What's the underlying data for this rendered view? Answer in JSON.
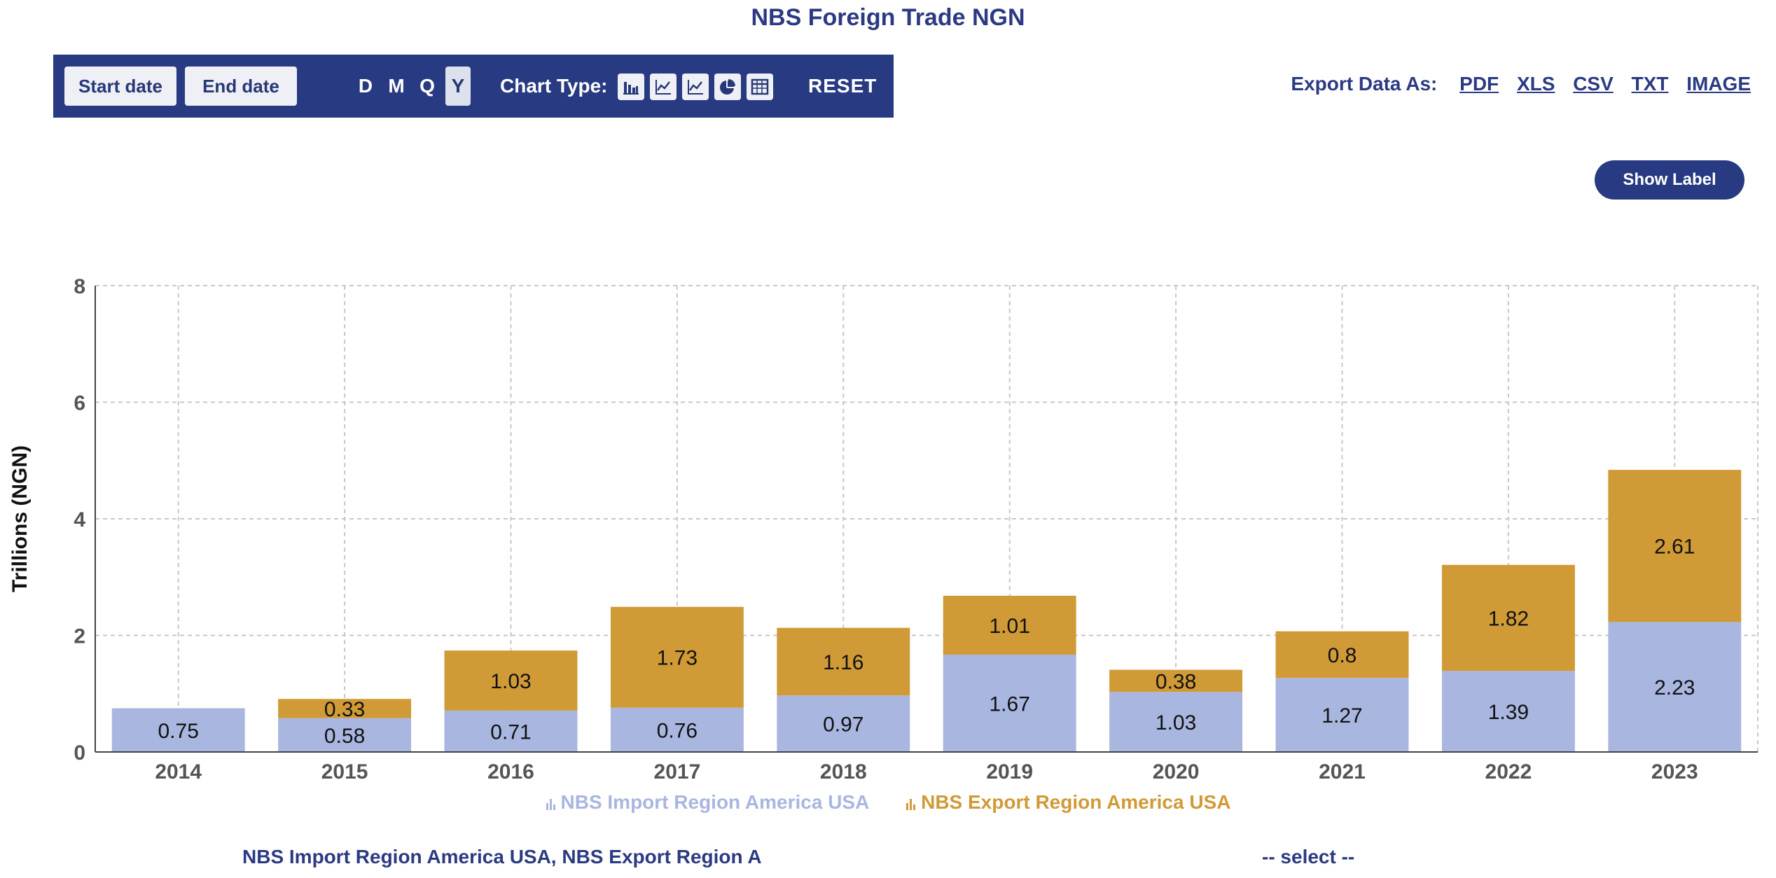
{
  "title": "NBS Foreign Trade NGN",
  "toolbar": {
    "start_date": "Start date",
    "end_date": "End date",
    "periods": [
      "D",
      "M",
      "Q",
      "Y"
    ],
    "active_period": "Y",
    "chart_type_label": "Chart Type:",
    "chart_type_icons": [
      "bar-chart-icon",
      "line-chart-icon",
      "area-chart-icon",
      "pie-chart-icon",
      "table-icon"
    ],
    "reset": "RESET"
  },
  "export": {
    "label": "Export Data As:",
    "formats": [
      "PDF",
      "XLS",
      "CSV",
      "TXT",
      "IMAGE"
    ]
  },
  "show_label_button": "Show Label",
  "footer": {
    "selected_series": "NBS Import Region America USA, NBS Export Region A",
    "select_placeholder": "-- select --"
  },
  "colors": {
    "import": "#a9b6e0",
    "export": "#d09a36",
    "brand": "#273a82"
  },
  "chart_data": {
    "type": "bar",
    "stacked": true,
    "categories": [
      "2014",
      "2015",
      "2016",
      "2017",
      "2018",
      "2019",
      "2020",
      "2021",
      "2022",
      "2023"
    ],
    "series": [
      {
        "name": "NBS Import Region America USA",
        "values": [
          0.75,
          0.58,
          0.71,
          0.76,
          0.97,
          1.67,
          1.03,
          1.27,
          1.39,
          2.23
        ]
      },
      {
        "name": "NBS Export Region America USA",
        "values": [
          0,
          0.33,
          1.03,
          1.73,
          1.16,
          1.01,
          0.38,
          0.8,
          1.82,
          2.61
        ]
      }
    ],
    "data_labels": [
      [
        "0.75",
        "0.58",
        "0.71",
        "0.76",
        "0.97",
        "1.67",
        "1.03",
        "1.27",
        "1.39",
        "2.23"
      ],
      [
        "",
        "0.33",
        "1.03",
        "1.73",
        "1.16",
        "1.01",
        "0.38",
        "0.8",
        "1.82",
        "2.61"
      ]
    ],
    "ylabel": "Trillions (NGN)",
    "ylim": [
      0,
      8
    ],
    "yticks": [
      "0",
      "2",
      "4",
      "6",
      "8"
    ],
    "grid": true,
    "legend_position": "bottom"
  }
}
